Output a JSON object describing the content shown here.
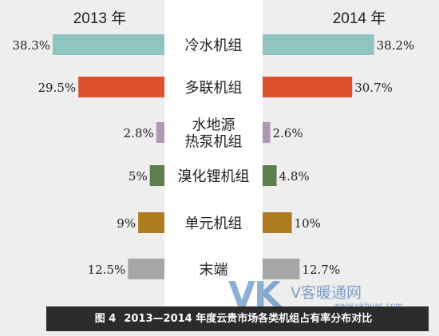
{
  "chart_data": {
    "type": "bar",
    "subtype": "mirrored-horizontal",
    "categories": [
      "冷水机组",
      "多联机组",
      "水地源\n热泵机组",
      "溴化锂机组",
      "单元机组",
      "末端"
    ],
    "series": [
      {
        "name": "2013 年",
        "values": [
          38.3,
          29.5,
          2.8,
          5,
          9,
          12.5
        ],
        "labels": [
          "38.3%",
          "29.5%",
          "2.8%",
          "5%",
          "9%",
          "12.5%"
        ]
      },
      {
        "name": "2014 年",
        "values": [
          38.2,
          30.7,
          2.6,
          4.8,
          10,
          12.7
        ],
        "labels": [
          "38.2%",
          "30.7%",
          "2.6%",
          "4.8%",
          "10%",
          "12.7%"
        ]
      }
    ],
    "colors": [
      "#8fc5be",
      "#de4f2e",
      "#ae98b3",
      "#5e7d4e",
      "#ad7c1f",
      "#a6a6a6"
    ],
    "xlim": [
      0,
      40
    ]
  },
  "caption": {
    "fig": "图 4",
    "text": "2013—2014 年度云贵市场各类机组占有率分布对比"
  },
  "watermark": {
    "logo": "VK",
    "name": "V客暖通网",
    "url": "www.vkhvac.com"
  }
}
